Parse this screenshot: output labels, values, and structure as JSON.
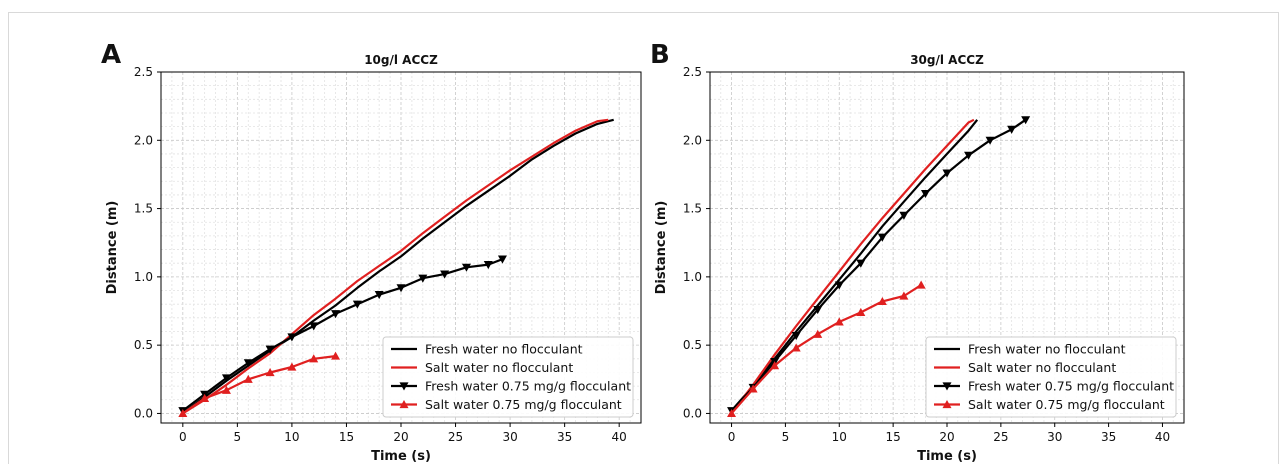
{
  "figure": {
    "panels": [
      {
        "letter": "A"
      },
      {
        "letter": "B"
      }
    ]
  },
  "chart_data": [
    {
      "type": "line",
      "title": "10g/l ACCZ",
      "xlabel": "Time (s)",
      "ylabel": "Distance (m)",
      "xlim": [
        -2,
        42
      ],
      "ylim": [
        -0.07,
        2.5
      ],
      "xticks": [
        0,
        5,
        10,
        15,
        20,
        25,
        30,
        35,
        40
      ],
      "yticks": [
        0.0,
        0.5,
        1.0,
        1.5,
        2.0,
        2.5
      ],
      "xtick_labels": [
        "0",
        "5",
        "10",
        "15",
        "20",
        "25",
        "30",
        "35",
        "40"
      ],
      "ytick_labels": [
        "0.0",
        "0.5",
        "1.0",
        "1.5",
        "2.0",
        "2.5"
      ],
      "grid": true,
      "legend_position": "bottom-right",
      "series": [
        {
          "name": "Fresh water no flocculant",
          "color": "#000000",
          "marker": "none",
          "x": [
            0,
            2,
            4,
            6,
            8,
            10,
            12,
            14,
            16,
            18,
            20,
            22,
            24,
            26,
            28,
            30,
            32,
            34,
            36,
            38,
            39.5
          ],
          "y": [
            0.0,
            0.12,
            0.24,
            0.35,
            0.46,
            0.56,
            0.68,
            0.79,
            0.92,
            1.04,
            1.15,
            1.28,
            1.4,
            1.52,
            1.63,
            1.74,
            1.86,
            1.96,
            2.05,
            2.12,
            2.15
          ]
        },
        {
          "name": "Salt water no flocculant",
          "color": "#e02020",
          "marker": "none",
          "x": [
            0,
            2,
            4,
            6,
            8,
            10,
            12,
            14,
            16,
            18,
            20,
            22,
            24,
            26,
            28,
            30,
            32,
            34,
            36,
            38,
            39
          ],
          "y": [
            0.0,
            0.1,
            0.21,
            0.33,
            0.44,
            0.58,
            0.72,
            0.84,
            0.97,
            1.08,
            1.19,
            1.32,
            1.44,
            1.56,
            1.67,
            1.78,
            1.88,
            1.98,
            2.07,
            2.14,
            2.15
          ]
        },
        {
          "name": "Fresh water 0.75 mg/g flocculant",
          "color": "#000000",
          "marker": "triangle-down",
          "x": [
            0,
            2,
            4,
            6,
            8,
            10,
            12,
            14,
            16,
            18,
            20,
            22,
            24,
            26,
            28,
            29.3
          ],
          "y": [
            0.02,
            0.14,
            0.26,
            0.37,
            0.47,
            0.56,
            0.64,
            0.73,
            0.8,
            0.87,
            0.92,
            0.99,
            1.02,
            1.07,
            1.09,
            1.13
          ]
        },
        {
          "name": "Salt water 0.75 mg/g flocculant",
          "color": "#e02020",
          "marker": "triangle-up",
          "x": [
            0,
            2,
            4,
            6,
            8,
            10,
            12,
            14
          ],
          "y": [
            0.0,
            0.11,
            0.17,
            0.25,
            0.3,
            0.34,
            0.4,
            0.42
          ]
        }
      ]
    },
    {
      "type": "line",
      "title": "30g/l ACCZ",
      "xlabel": "Time (s)",
      "ylabel": "Distance (m)",
      "xlim": [
        -2,
        42
      ],
      "ylim": [
        -0.07,
        2.5
      ],
      "xticks": [
        0,
        5,
        10,
        15,
        20,
        25,
        30,
        35,
        40
      ],
      "yticks": [
        0.0,
        0.5,
        1.0,
        1.5,
        2.0,
        2.5
      ],
      "xtick_labels": [
        "0",
        "5",
        "10",
        "15",
        "20",
        "25",
        "30",
        "35",
        "40"
      ],
      "ytick_labels": [
        "0.0",
        "0.5",
        "1.0",
        "1.5",
        "2.0",
        "2.5"
      ],
      "grid": true,
      "legend_position": "bottom-right",
      "series": [
        {
          "name": "Fresh water no flocculant",
          "color": "#000000",
          "marker": "none",
          "x": [
            0,
            2,
            4,
            6,
            8,
            10,
            12,
            14,
            16,
            18,
            20,
            22,
            22.8
          ],
          "y": [
            0.02,
            0.2,
            0.4,
            0.6,
            0.79,
            0.98,
            1.17,
            1.37,
            1.55,
            1.73,
            1.9,
            2.07,
            2.15
          ]
        },
        {
          "name": "Salt water no flocculant",
          "color": "#e02020",
          "marker": "none",
          "x": [
            0,
            2,
            4,
            6,
            8,
            10,
            12,
            14,
            16,
            18,
            20,
            22,
            22.5
          ],
          "y": [
            0.0,
            0.21,
            0.43,
            0.64,
            0.84,
            1.04,
            1.24,
            1.43,
            1.61,
            1.79,
            1.96,
            2.13,
            2.15
          ]
        },
        {
          "name": "Fresh water 0.75 mg/g flocculant",
          "color": "#000000",
          "marker": "triangle-down",
          "x": [
            0,
            2,
            4,
            6,
            8,
            10,
            12,
            14,
            16,
            18,
            20,
            22,
            24,
            26,
            27.3
          ],
          "y": [
            0.02,
            0.19,
            0.38,
            0.57,
            0.76,
            0.94,
            1.1,
            1.29,
            1.45,
            1.61,
            1.76,
            1.89,
            2.0,
            2.08,
            2.15
          ]
        },
        {
          "name": "Salt water 0.75 mg/g flocculant",
          "color": "#e02020",
          "marker": "triangle-up",
          "x": [
            0,
            2,
            4,
            6,
            8,
            10,
            12,
            14,
            16,
            17.6
          ],
          "y": [
            0.0,
            0.18,
            0.35,
            0.48,
            0.58,
            0.67,
            0.74,
            0.82,
            0.86,
            0.94
          ]
        }
      ]
    }
  ]
}
